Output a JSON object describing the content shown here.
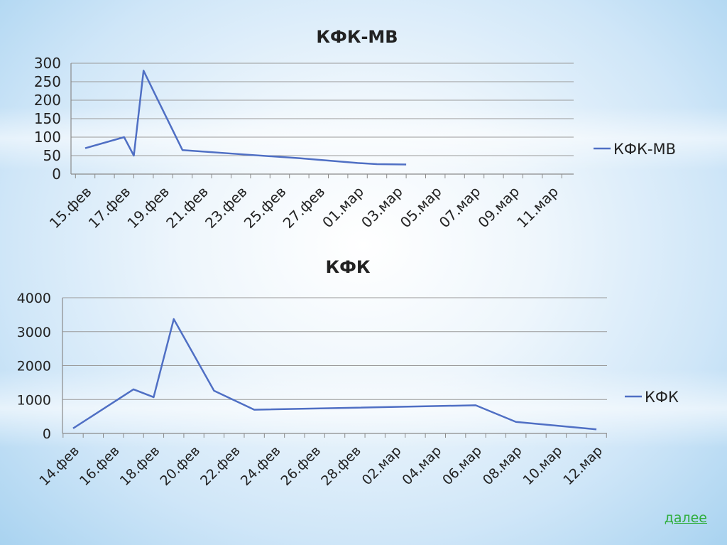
{
  "chart_data": [
    {
      "type": "line",
      "title": "КФК-МВ",
      "categories": [
        "15.фев",
        "17.фев",
        "19.фев",
        "21.фев",
        "23.фев",
        "25.фев",
        "27.фев",
        "01.мар",
        "03.мар",
        "05.мар",
        "07.мар",
        "09.мар",
        "11.мар"
      ],
      "ylim": [
        0,
        300
      ],
      "yticks": [
        0,
        50,
        100,
        150,
        200,
        250,
        300
      ],
      "series": [
        {
          "name": "КФК-МВ",
          "points": [
            [
              0,
              70
            ],
            [
              2,
              100
            ],
            [
              2.5,
              50
            ],
            [
              3,
              280
            ],
            [
              3.6,
              215
            ],
            [
              5,
              65
            ],
            [
              8.2,
              53
            ],
            [
              11,
              43
            ],
            [
              14,
              30
            ],
            [
              15,
              27
            ],
            [
              16.5,
              26
            ]
          ]
        }
      ],
      "legend": "right",
      "grid": true
    },
    {
      "type": "line",
      "title": "КФК",
      "categories": [
        "14.фев",
        "16.фев",
        "18.фев",
        "20.фев",
        "22.фев",
        "24.фев",
        "26.фев",
        "28.фев",
        "02.мар",
        "04.мар",
        "06.мар",
        "08.мар",
        "10.мар",
        "12.мар"
      ],
      "ylim": [
        0,
        4000
      ],
      "yticks": [
        0,
        1000,
        2000,
        3000,
        4000
      ],
      "series": [
        {
          "name": "КФК",
          "points": [
            [
              0,
              150
            ],
            [
              3,
              1300
            ],
            [
              4,
              1070
            ],
            [
              5,
              3370
            ],
            [
              7,
              1260
            ],
            [
              9,
              700
            ],
            [
              20,
              830
            ],
            [
              22,
              340
            ],
            [
              26,
              120
            ]
          ]
        }
      ],
      "legend": "right",
      "grid": true
    }
  ],
  "nav": {
    "next_label": "далее"
  },
  "colors": {
    "line": "#4f6fc4",
    "grid": "#9a9a9a",
    "text": "#222222",
    "link": "#2fae3c"
  }
}
